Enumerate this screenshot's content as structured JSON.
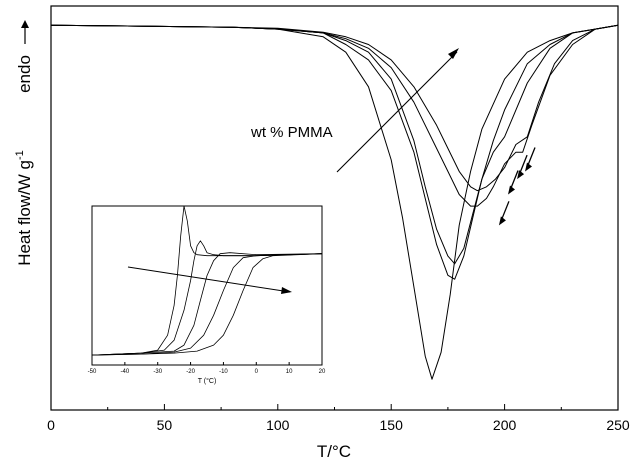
{
  "chart_data": [
    {
      "type": "line",
      "title": "",
      "xlabel": "T/°C",
      "ylabel": "Heat flow/W g",
      "ylabel_superscript": "-1",
      "ylabel_side_text": "endo",
      "x_ticks": [
        "0",
        "50",
        "100",
        "150",
        "200",
        "250"
      ],
      "xlim": [
        0,
        250
      ],
      "ylim": [
        -1,
        0.05
      ],
      "y_scale_shown": false,
      "grid": false,
      "annotation": "wt % PMMA",
      "arrow_marks": [
        {
          "x": 197.5,
          "y": -0.52
        },
        {
          "x": 201.5,
          "y": -0.44
        },
        {
          "x": 205.5,
          "y": -0.4
        },
        {
          "x": 209,
          "y": -0.38
        }
      ],
      "series": [
        {
          "x": [
            0,
            80,
            100,
            120,
            130,
            140,
            150,
            155,
            160,
            165,
            168,
            172,
            176,
            180,
            185,
            190,
            200,
            210,
            220,
            230,
            240,
            250
          ],
          "y": [
            0,
            -0.005,
            -0.01,
            -0.03,
            -0.07,
            -0.16,
            -0.35,
            -0.5,
            -0.68,
            -0.86,
            -0.92,
            -0.85,
            -0.7,
            -0.52,
            -0.38,
            -0.27,
            -0.14,
            -0.07,
            -0.04,
            -0.02,
            -0.01,
            0
          ]
        },
        {
          "x": [
            0,
            80,
            100,
            120,
            130,
            140,
            150,
            160,
            165,
            170,
            175,
            178,
            182,
            186,
            190,
            195,
            200,
            210,
            220,
            230,
            240,
            250
          ],
          "y": [
            0,
            -0.005,
            -0.01,
            -0.02,
            -0.05,
            -0.09,
            -0.17,
            -0.33,
            -0.45,
            -0.57,
            -0.65,
            -0.66,
            -0.6,
            -0.5,
            -0.4,
            -0.3,
            -0.22,
            -0.1,
            -0.05,
            -0.02,
            -0.01,
            0
          ]
        },
        {
          "x": [
            0,
            80,
            100,
            120,
            130,
            140,
            150,
            160,
            165,
            170,
            175,
            178,
            182,
            186,
            190,
            195,
            200,
            210,
            220,
            230,
            240,
            250
          ],
          "y": [
            0,
            -0.005,
            -0.01,
            -0.02,
            -0.04,
            -0.07,
            -0.14,
            -0.3,
            -0.42,
            -0.53,
            -0.6,
            -0.62,
            -0.58,
            -0.49,
            -0.4,
            -0.33,
            -0.29,
            -0.15,
            -0.06,
            -0.02,
            -0.01,
            0
          ]
        },
        {
          "x": [
            0,
            80,
            100,
            120,
            130,
            140,
            150,
            160,
            170,
            175,
            180,
            185,
            188,
            192,
            195,
            200,
            205,
            208,
            212,
            220,
            230,
            240,
            250
          ],
          "y": [
            0,
            -0.005,
            -0.01,
            -0.02,
            -0.035,
            -0.06,
            -0.11,
            -0.2,
            -0.32,
            -0.38,
            -0.44,
            -0.47,
            -0.47,
            -0.45,
            -0.42,
            -0.36,
            -0.33,
            -0.33,
            -0.26,
            -0.13,
            -0.05,
            -0.01,
            0
          ]
        },
        {
          "x": [
            0,
            80,
            100,
            120,
            130,
            140,
            150,
            160,
            170,
            175,
            180,
            185,
            188,
            192,
            196,
            200,
            205,
            210,
            215,
            222,
            230,
            240,
            250
          ],
          "y": [
            0,
            -0.005,
            -0.008,
            -0.018,
            -0.03,
            -0.05,
            -0.09,
            -0.16,
            -0.26,
            -0.32,
            -0.38,
            -0.42,
            -0.43,
            -0.42,
            -0.4,
            -0.37,
            -0.31,
            -0.29,
            -0.2,
            -0.1,
            -0.04,
            -0.01,
            0
          ]
        }
      ]
    },
    {
      "type": "line",
      "title": "",
      "xlabel": "T (°C)",
      "ylabel": "",
      "x_ticks": [
        "-50",
        "-40",
        "-30",
        "-20",
        "-10",
        "0",
        "10",
        "20"
      ],
      "xlim": [
        -50,
        20
      ],
      "ylim": [
        -1.1,
        0.5
      ],
      "grid": false,
      "series": [
        {
          "x": [
            -50,
            -35,
            -30,
            -27,
            -25,
            -24,
            -23,
            -22,
            -21,
            -20,
            -19,
            -18,
            -15,
            -10,
            0,
            20
          ],
          "y": [
            -1,
            -0.98,
            -0.95,
            -0.8,
            -0.5,
            -0.2,
            0.2,
            0.5,
            0.35,
            0.1,
            0.03,
            0.01,
            0,
            0,
            0,
            0.02
          ]
        },
        {
          "x": [
            -50,
            -35,
            -28,
            -25,
            -22,
            -20,
            -19,
            -18,
            -17,
            -16,
            -15,
            -13,
            -10,
            0,
            20
          ],
          "y": [
            -1,
            -0.98,
            -0.95,
            -0.85,
            -0.55,
            -0.25,
            -0.05,
            0.1,
            0.15,
            0.1,
            0.03,
            0.01,
            0,
            0,
            0.02
          ]
        },
        {
          "x": [
            -50,
            -35,
            -25,
            -22,
            -19,
            -17,
            -15,
            -13,
            -11,
            -8,
            0,
            20
          ],
          "y": [
            -1,
            -0.98,
            -0.96,
            -0.9,
            -0.7,
            -0.45,
            -0.2,
            -0.05,
            0.02,
            0.03,
            0.01,
            0.02
          ]
        },
        {
          "x": [
            -50,
            -35,
            -25,
            -20,
            -16,
            -13,
            -10,
            -7,
            -4,
            0,
            20
          ],
          "y": [
            -1,
            -0.99,
            -0.97,
            -0.93,
            -0.8,
            -0.6,
            -0.35,
            -0.12,
            -0.02,
            0,
            0.02
          ]
        },
        {
          "x": [
            -50,
            -35,
            -25,
            -18,
            -13,
            -10,
            -7,
            -4,
            -1,
            2,
            5,
            20
          ],
          "y": [
            -1,
            -0.99,
            -0.98,
            -0.96,
            -0.9,
            -0.8,
            -0.6,
            -0.35,
            -0.12,
            -0.03,
            0,
            0.02
          ]
        }
      ]
    }
  ]
}
